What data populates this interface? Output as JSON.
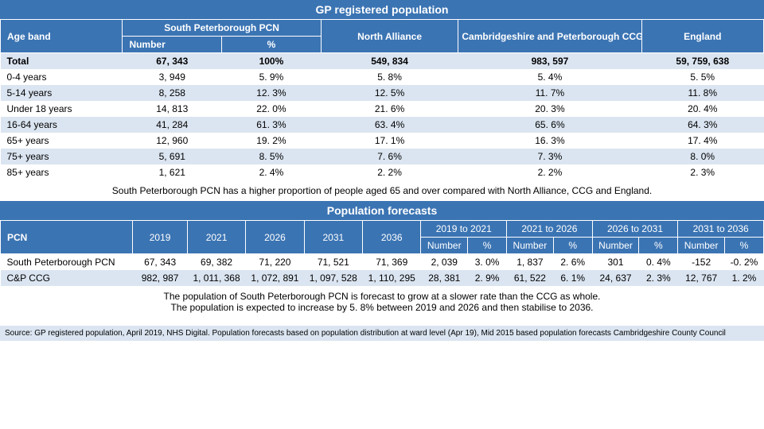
{
  "section1": {
    "title": "GP registered population",
    "headers": {
      "ageband": "Age band",
      "sp_pcn": "South Peterborough PCN",
      "number": "Number",
      "pct": "%",
      "north": "North Alliance",
      "ccg": "Cambridgeshire and Peterborough CCG",
      "england": "England"
    },
    "rows": [
      {
        "label": "Total",
        "num": "67, 343",
        "pct": "100%",
        "north": "549, 834",
        "ccg": "983, 597",
        "england": "59, 759, 638",
        "total": true
      },
      {
        "label": "0-4 years",
        "num": "3, 949",
        "pct": "5. 9%",
        "north": "5. 8%",
        "ccg": "5. 4%",
        "england": "5. 5%"
      },
      {
        "label": "5-14 years",
        "num": "8, 258",
        "pct": "12. 3%",
        "north": "12. 5%",
        "ccg": "11. 7%",
        "england": "11. 8%"
      },
      {
        "label": "Under 18 years",
        "num": "14, 813",
        "pct": "22. 0%",
        "north": "21. 6%",
        "ccg": "20. 3%",
        "england": "20. 4%"
      },
      {
        "label": "16-64 years",
        "num": "41, 284",
        "pct": "61. 3%",
        "north": "63. 4%",
        "ccg": "65. 6%",
        "england": "64. 3%"
      },
      {
        "label": "65+ years",
        "num": "12, 960",
        "pct": "19. 2%",
        "north": "17. 1%",
        "ccg": "16. 3%",
        "england": "17. 4%"
      },
      {
        "label": "75+ years",
        "num": "5, 691",
        "pct": "8. 5%",
        "north": "7. 6%",
        "ccg": "7. 3%",
        "england": "8. 0%"
      },
      {
        "label": "85+ years",
        "num": "1, 621",
        "pct": "2. 4%",
        "north": "2. 2%",
        "ccg": "2. 2%",
        "england": "2. 3%"
      }
    ],
    "caption": "South Peterborough PCN has a higher proportion of people aged 65 and over compared with North Alliance, CCG and England."
  },
  "section2": {
    "title": "Population forecasts",
    "headers": {
      "pcn": "PCN",
      "y2019": "2019",
      "y2021": "2021",
      "y2026": "2026",
      "y2031": "2031",
      "y2036": "2036",
      "p1": "2019 to 2021",
      "p2": "2021 to 2026",
      "p3": "2026 to 2031",
      "p4": "2031 to 2036",
      "number": "Number",
      "pct": "%"
    },
    "rows": [
      {
        "label": "South Peterborough PCN",
        "y19": "67, 343",
        "y21": "69, 382",
        "y26": "71, 220",
        "y31": "71, 521",
        "y36": "71, 369",
        "n1": "2, 039",
        "p1": "3. 0%",
        "n2": "1, 837",
        "p2": "2. 6%",
        "n3": "301",
        "p3": "0. 4%",
        "n4": "-152",
        "p4": "-0. 2%"
      },
      {
        "label": "C&P CCG",
        "y19": "982, 987",
        "y21": "1, 011, 368",
        "y26": "1, 072, 891",
        "y31": "1, 097, 528",
        "y36": "1, 110, 295",
        "n1": "28, 381",
        "p1": "2. 9%",
        "n2": "61, 522",
        "p2": "6. 1%",
        "n3": "24, 637",
        "p3": "2. 3%",
        "n4": "12, 767",
        "p4": "1. 2%"
      }
    ],
    "caption1": "The population of South Peterborough PCN is forecast to grow at a slower rate than the CCG as whole.",
    "caption2": "The population is expected to increase by 5. 8% between 2019 and 2026 and then stabilise to 2036."
  },
  "source": "Source: GP registered population, April 2019, NHS Digital.  Population forecasts based on population distribution at ward level (Apr 19), Mid 2015 based population forecasts Cambridgeshire County Council",
  "colors": {
    "header_bg": "#3b74b3",
    "stripe_bg": "#dbe5f1",
    "text": "#000000",
    "white": "#ffffff"
  }
}
